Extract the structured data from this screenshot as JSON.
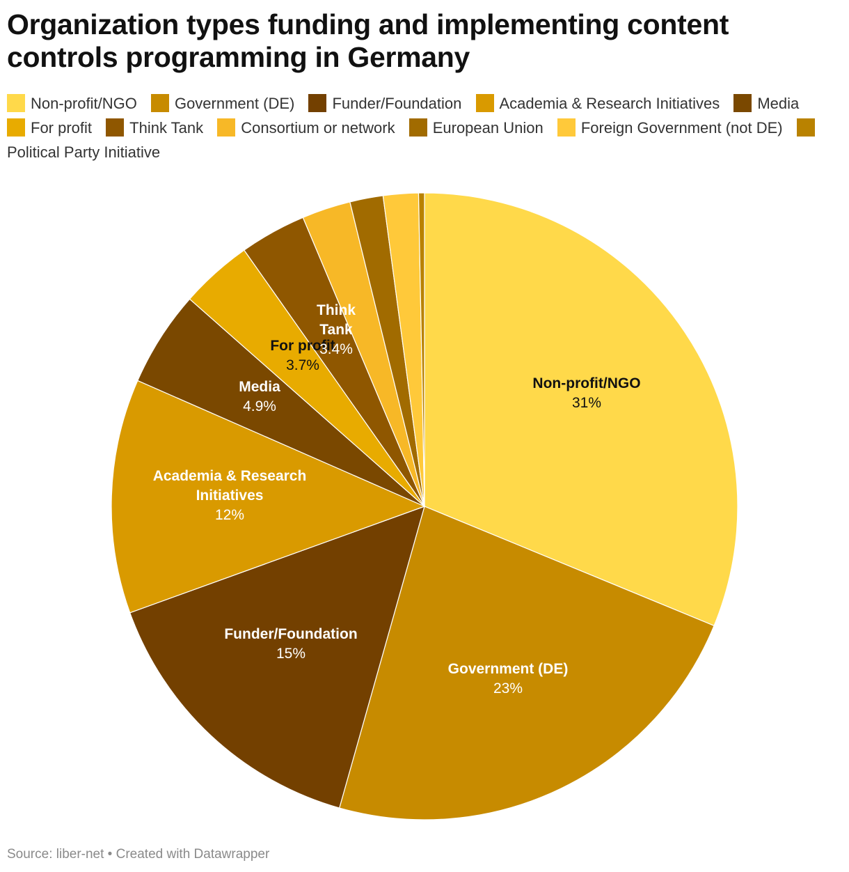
{
  "header": {
    "title": "Organization types funding and implementing content controls programming in Germany"
  },
  "footer": {
    "text": "Source: liber-net • Created with Datawrapper"
  },
  "chart_data": {
    "type": "pie",
    "title": "Organization types funding and implementing content controls programming in Germany",
    "legend_position": "top",
    "slices": [
      {
        "label": "Non-profit/NGO",
        "value": 31,
        "display": "31%",
        "color": "#ffd94a",
        "text_color": "#111111",
        "show_label": true
      },
      {
        "label": "Government (DE)",
        "value": 23,
        "display": "23%",
        "color": "#c78b00",
        "text_color": "#ffffff",
        "show_label": true
      },
      {
        "label": "Funder/Foundation",
        "value": 15,
        "display": "15%",
        "color": "#734000",
        "text_color": "#ffffff",
        "show_label": true
      },
      {
        "label": "Academia & Research Initiatives",
        "value": 12,
        "display": "12%",
        "color": "#d99a00",
        "text_color": "#ffffff",
        "show_label": true
      },
      {
        "label": "Media",
        "value": 4.9,
        "display": "4.9%",
        "color": "#7a4800",
        "text_color": "#ffffff",
        "show_label": true
      },
      {
        "label": "For profit",
        "value": 3.7,
        "display": "3.7%",
        "color": "#e8ab00",
        "text_color": "#111111",
        "show_label": true
      },
      {
        "label": "Think Tank",
        "value": 3.4,
        "display": "3.4%",
        "color": "#8f5700",
        "text_color": "#ffffff",
        "show_label": true
      },
      {
        "label": "Consortium or network",
        "value": 2.5,
        "display": "",
        "color": "#f7b827",
        "text_color": "#111111",
        "show_label": false
      },
      {
        "label": "European Union",
        "value": 1.7,
        "display": "",
        "color": "#a16b00",
        "text_color": "#ffffff",
        "show_label": false
      },
      {
        "label": "Foreign Government (not DE)",
        "value": 1.8,
        "display": "",
        "color": "#ffc93a",
        "text_color": "#111111",
        "show_label": false
      },
      {
        "label": "Political Party Initiative",
        "value": 0.3,
        "display": "",
        "color": "#b98200",
        "text_color": "#ffffff",
        "show_label": false
      }
    ]
  }
}
